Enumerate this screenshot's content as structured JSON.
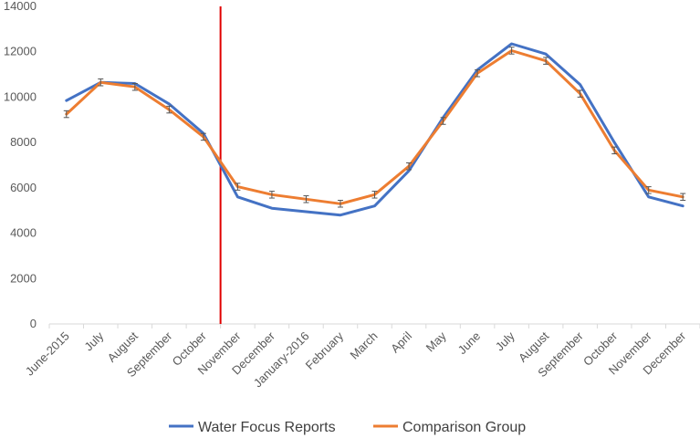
{
  "chart_data": {
    "type": "line",
    "title": "",
    "xlabel": "",
    "ylabel": "",
    "categories": [
      "June-2015",
      "July",
      "August",
      "September",
      "October",
      "November",
      "December",
      "January-2016",
      "February",
      "March",
      "April",
      "May",
      "June",
      "July",
      "August",
      "September",
      "October",
      "November",
      "December"
    ],
    "ylim": [
      0,
      14000
    ],
    "yticks": [
      0,
      2000,
      4000,
      6000,
      8000,
      10000,
      12000,
      14000
    ],
    "grid": false,
    "legend_position": "bottom",
    "marker_line": {
      "category_index": 4,
      "color": "#e00000"
    },
    "error_bar_half_width": 150,
    "series": [
      {
        "name": "Water Focus Reports",
        "color": "#4472c4",
        "values": [
          9850,
          10650,
          10600,
          9700,
          8400,
          5600,
          5100,
          4950,
          4800,
          5200,
          6750,
          9100,
          11200,
          12350,
          11900,
          10550,
          8000,
          5600,
          5200
        ]
      },
      {
        "name": "Comparison Group",
        "color": "#ed7d31",
        "values": [
          9250,
          10650,
          10450,
          9450,
          8250,
          6050,
          5700,
          5500,
          5300,
          5700,
          6950,
          8950,
          11050,
          12050,
          11600,
          10150,
          7650,
          5900,
          5600
        ],
        "error_bars": true
      }
    ]
  }
}
